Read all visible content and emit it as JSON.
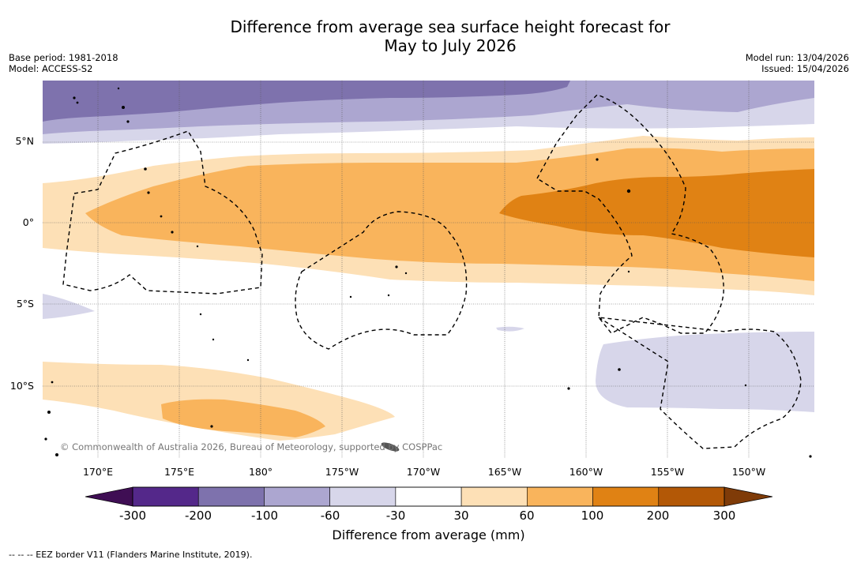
{
  "title": {
    "line1": "Difference from average sea surface height forecast for",
    "line2": "May to July 2026"
  },
  "meta": {
    "base_period": "Base period: 1981-2018",
    "model": "Model: ACCESS-S2",
    "model_run": "Model run: 13/04/2026",
    "issued": "Issued: 15/04/2026"
  },
  "axes": {
    "lat_labels": [
      "5°N",
      "0°",
      "5°S",
      "10°S"
    ],
    "lon_labels": [
      "170°E",
      "175°E",
      "180°",
      "175°W",
      "170°W",
      "165°W",
      "160°W",
      "155°W",
      "150°W"
    ]
  },
  "copyright": "© Commonwealth of Australia 2026, Bureau of Meteorology, supported by COSPPac",
  "colorbar": {
    "ticks": [
      "-300",
      "-200",
      "-100",
      "-60",
      "-30",
      "30",
      "60",
      "100",
      "200",
      "300"
    ],
    "label": "Difference from average (mm)",
    "colors": [
      "#3f0e54",
      "#54288a",
      "#7e72ad",
      "#aca6d0",
      "#d7d6ea",
      "#ffffff",
      "#fde0b6",
      "#f9b45c",
      "#e08214",
      "#b35806",
      "#7f3b08"
    ]
  },
  "legend_note": "-- -- -- EEZ border V11 (Flanders Marine Institute, 2019).",
  "colors": {
    "purple_dark": "#7e72ad",
    "purple_mid": "#aca6d0",
    "purple_light": "#d7d6ea",
    "orange_light": "#fde0b6",
    "orange_mid": "#f9b45c",
    "orange_dark": "#e08214"
  }
}
